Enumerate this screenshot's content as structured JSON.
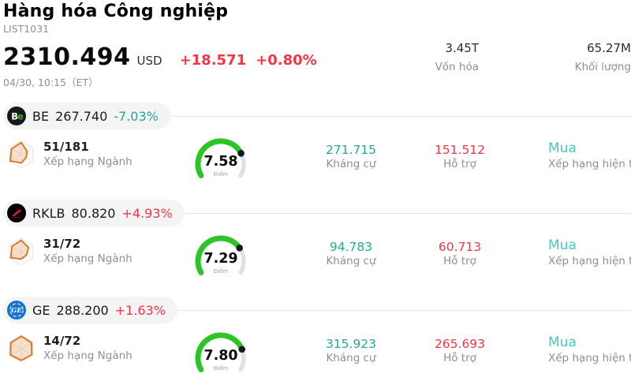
{
  "header": {
    "title": "Hàng hóa Công nghiệp",
    "list_id": "LIST1031",
    "price": "2310.494",
    "currency": "USD",
    "change": "+18.571",
    "change_pct": "+0.80%",
    "change_dir": "up",
    "timestamp": "04/30, 10:15（ET）",
    "stats": [
      {
        "value": "3.45T",
        "label": "Vốn hóa"
      },
      {
        "value": "65.27M",
        "label": "Khối lượng"
      }
    ]
  },
  "colors": {
    "up": "#f23645",
    "down": "#26a69a",
    "rating": "#45c9be",
    "gauge_active": "#2dc426",
    "gauge_rest": "#dfe1e6"
  },
  "icons": {
    "row_logos": [
      "bloom-energy-logo",
      "rocket-lab-logo",
      "general-electric-logo"
    ],
    "rank_icon": "industry-radar-icon"
  },
  "rows": [
    {
      "ticker": "BE",
      "price": "267.740",
      "change_pct": "-7.03%",
      "change_dir": "down",
      "industry_rank": "51/181",
      "industry_rank_label": "Xếp hạng Ngành",
      "score": "7.58",
      "score_label": "Điểm",
      "resistance": "271.715",
      "resistance_label": "Kháng cự",
      "support": "151.512",
      "support_label": "Hỗ trợ",
      "rating": "Mua",
      "rating_label": "Xếp hạng hiện tại"
    },
    {
      "ticker": "RKLB",
      "price": "80.820",
      "change_pct": "+4.93%",
      "change_dir": "up",
      "industry_rank": "31/72",
      "industry_rank_label": "Xếp hạng Ngành",
      "score": "7.29",
      "score_label": "Điểm",
      "resistance": "94.783",
      "resistance_label": "Kháng cự",
      "support": "60.713",
      "support_label": "Hỗ trợ",
      "rating": "Mua",
      "rating_label": "Xếp hạng hiện tại"
    },
    {
      "ticker": "GE",
      "price": "288.200",
      "change_pct": "+1.63%",
      "change_dir": "up",
      "industry_rank": "14/72",
      "industry_rank_label": "Xếp hạng Ngành",
      "score": "7.80",
      "score_label": "Điểm",
      "resistance": "315.923",
      "resistance_label": "Kháng cự",
      "support": "265.693",
      "support_label": "Hỗ trợ",
      "rating": "Mua",
      "rating_label": "Xếp hạng hiện tại"
    }
  ]
}
